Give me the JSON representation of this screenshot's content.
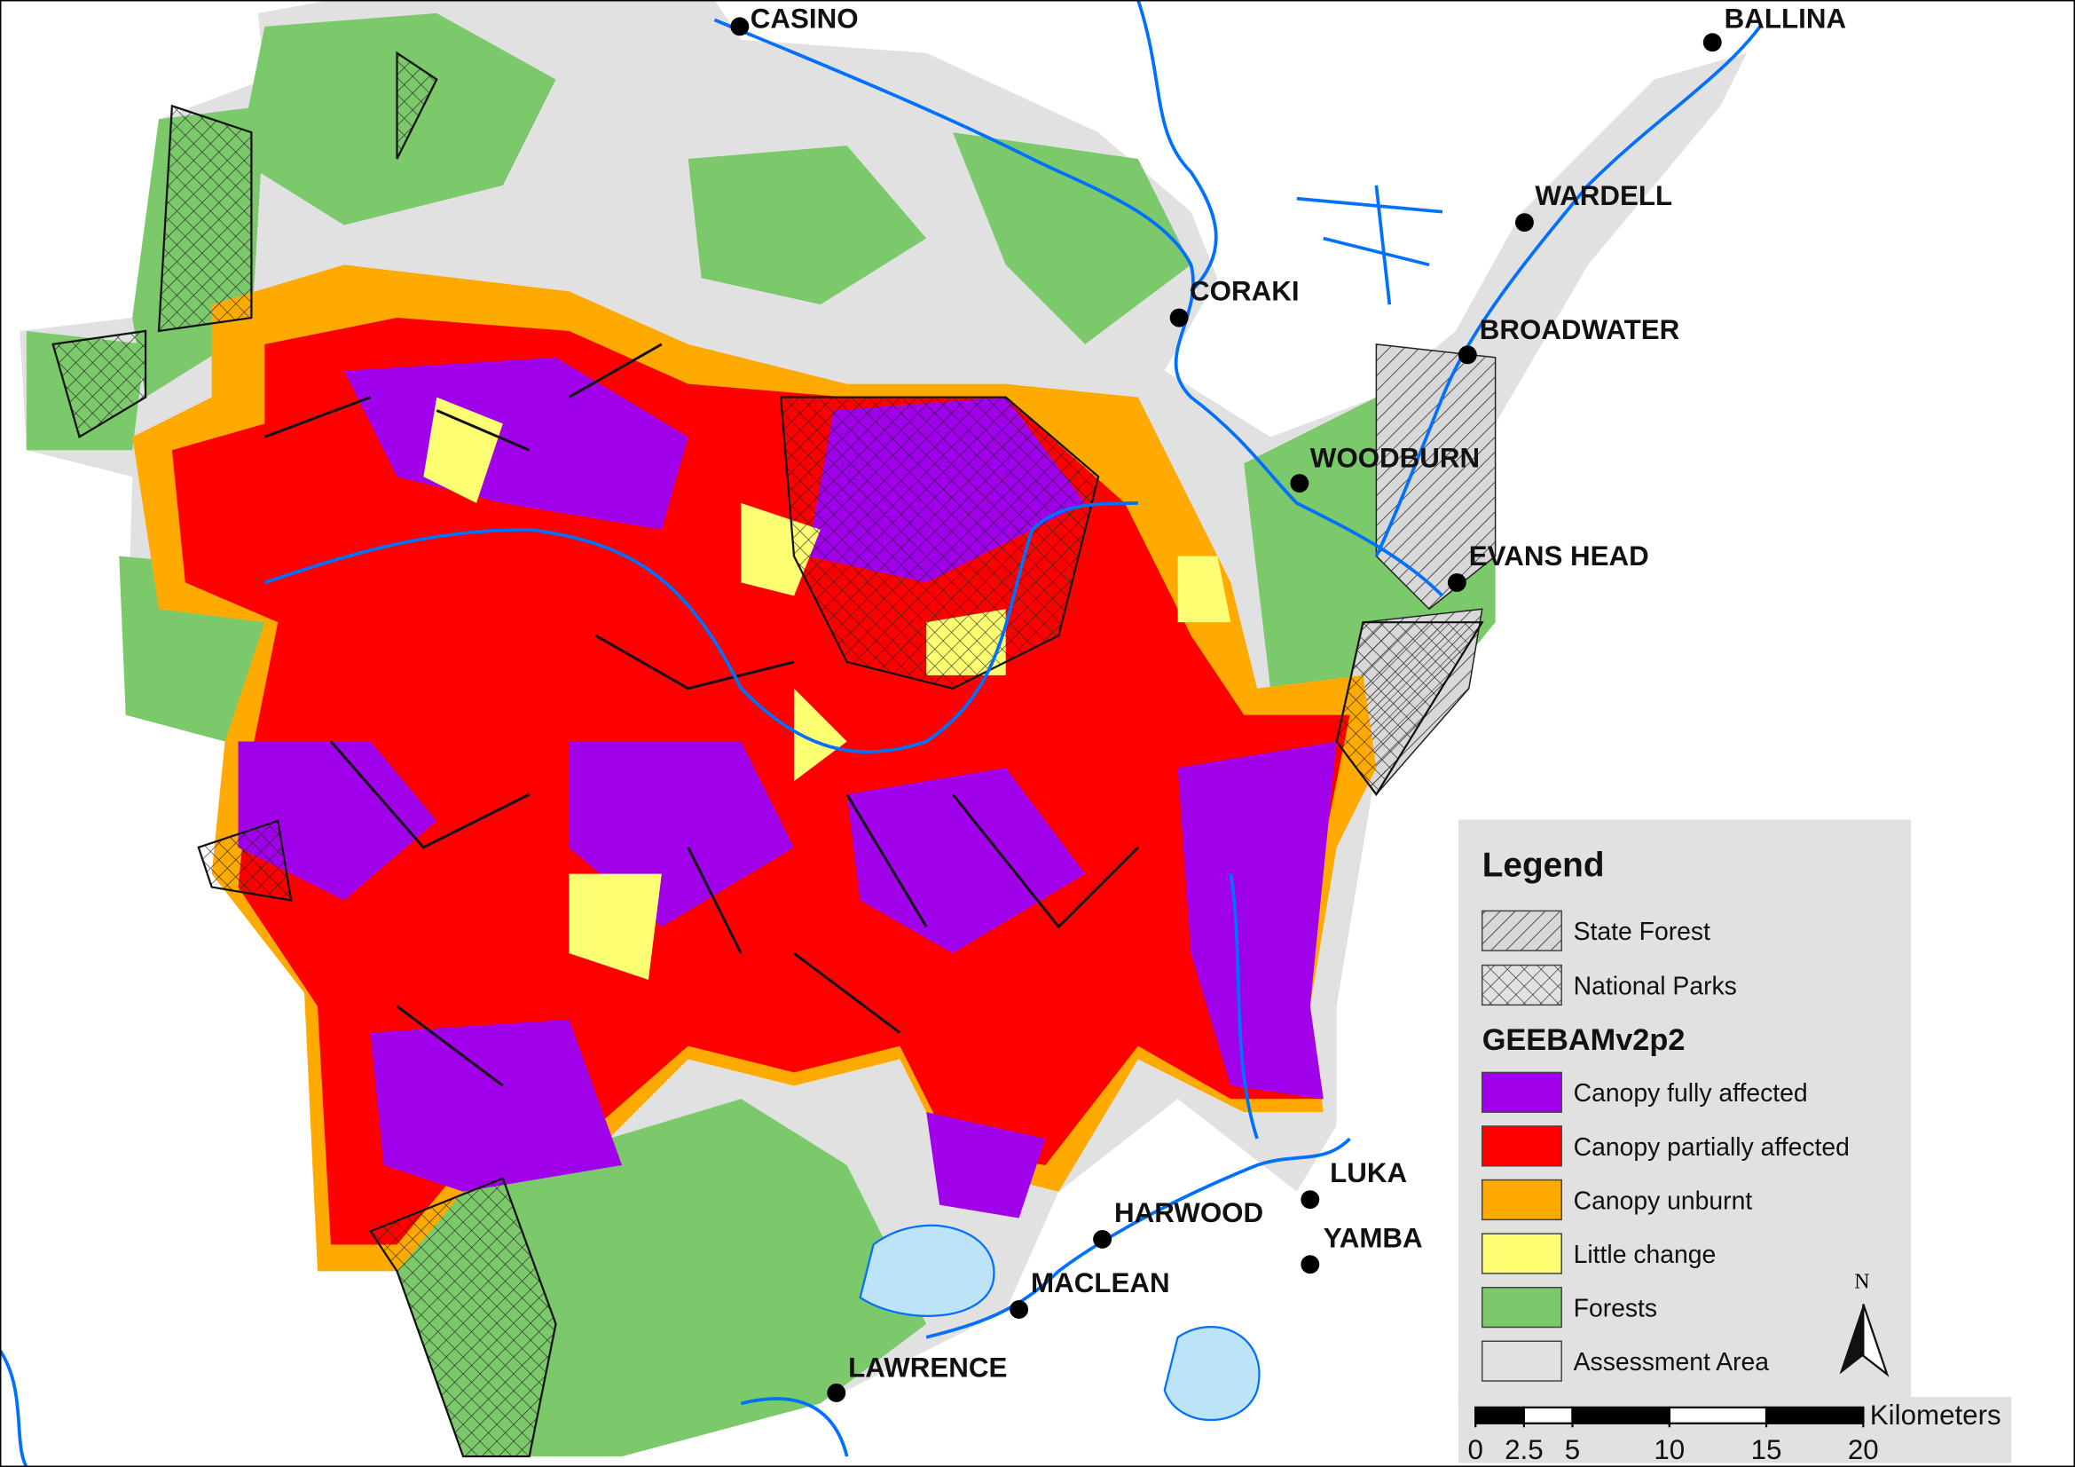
{
  "towns": [
    "CASINO",
    "BALLINA",
    "WARDELL",
    "CORAKI",
    "BROADWATER",
    "WOODBURN",
    "EVANS HEAD",
    "LUKA",
    "HARWOOD",
    "YAMBA",
    "MACLEAN",
    "LAWRENCE"
  ],
  "legend": {
    "title": "Legend",
    "tenure": [
      {
        "label": "State Forest",
        "pattern": "hatch"
      },
      {
        "label": "National Parks",
        "pattern": "crosshatch"
      }
    ],
    "layer_title": "GEEBAMv2p2",
    "classes": [
      {
        "label": "Canopy fully affected",
        "color": "#a100ea"
      },
      {
        "label": "Canopy partially affected",
        "color": "#ff0000"
      },
      {
        "label": "Canopy unburnt",
        "color": "#ffaa00"
      },
      {
        "label": "Little change",
        "color": "#ffff73"
      },
      {
        "label": "Forests",
        "color": "#7cc96b"
      },
      {
        "label": "Assessment Area",
        "color": "#e1e1e1"
      }
    ]
  },
  "north": "N",
  "scale_bar": {
    "unit": "Kilometers",
    "ticks": [
      0,
      2.5,
      5,
      10,
      15,
      20
    ]
  }
}
